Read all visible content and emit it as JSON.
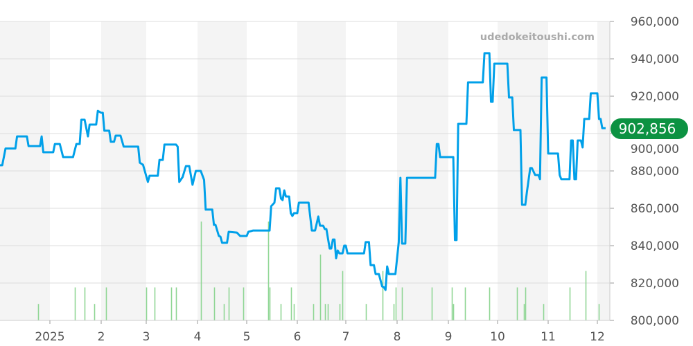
{
  "watermark": "udedokeitoushi.com",
  "current_price_label": "902,856",
  "colors": {
    "line": "#00a0e9",
    "volume": "#8fd694",
    "current_badge": "#0c9242",
    "band": "#f4f4f4",
    "grid": "#dddddd"
  },
  "chart_data": {
    "type": "line",
    "title": "",
    "xlabel": "",
    "ylabel": "",
    "ylim": [
      800000,
      960000
    ],
    "y_axis_position": "right",
    "grid": true,
    "y_ticks": [
      "960,000",
      "940,000",
      "920,000",
      "900,000",
      "880,000",
      "860,000",
      "840,000",
      "820,000",
      "800,000"
    ],
    "x_ticks": [
      {
        "date": "2025-01-01",
        "label": "2025"
      },
      {
        "date": "2025-02-01",
        "label": "2"
      },
      {
        "date": "2025-03-01",
        "label": "3"
      },
      {
        "date": "2025-04-01",
        "label": "4"
      },
      {
        "date": "2025-05-01",
        "label": "5"
      },
      {
        "date": "2025-06-01",
        "label": "6"
      },
      {
        "date": "2025-07-01",
        "label": "7"
      },
      {
        "date": "2025-08-01",
        "label": "8"
      },
      {
        "date": "2025-09-01",
        "label": "9"
      },
      {
        "date": "2025-10-01",
        "label": "10"
      },
      {
        "date": "2025-11-01",
        "label": "11"
      },
      {
        "date": "2025-12-01",
        "label": "12"
      }
    ],
    "series": [
      {
        "points": [
          [
            "2024-12-01",
            883000
          ],
          [
            "2024-12-03",
            883000
          ],
          [
            "2024-12-05",
            892000
          ],
          [
            "2024-12-11",
            892000
          ],
          [
            "2024-12-12",
            898500
          ],
          [
            "2024-12-18",
            898500
          ],
          [
            "2024-12-19",
            893300
          ],
          [
            "2024-12-26",
            893300
          ],
          [
            "2024-12-27",
            898500
          ],
          [
            "2024-12-28",
            890000
          ],
          [
            "2025-01-03",
            890000
          ],
          [
            "2025-01-04",
            894400
          ],
          [
            "2025-01-07",
            894400
          ],
          [
            "2025-01-09",
            887400
          ],
          [
            "2025-01-15",
            887400
          ],
          [
            "2025-01-17",
            894400
          ],
          [
            "2025-01-19",
            894400
          ],
          [
            "2025-01-20",
            907400
          ],
          [
            "2025-01-22",
            907400
          ],
          [
            "2025-01-24",
            898500
          ],
          [
            "2025-01-25",
            904800
          ],
          [
            "2025-01-29",
            904800
          ],
          [
            "2025-01-30",
            912200
          ],
          [
            "2025-02-01",
            911100
          ],
          [
            "2025-02-02",
            911100
          ],
          [
            "2025-02-03",
            901500
          ],
          [
            "2025-02-06",
            901500
          ],
          [
            "2025-02-07",
            895600
          ],
          [
            "2025-02-09",
            895600
          ],
          [
            "2025-02-10",
            898900
          ],
          [
            "2025-02-13",
            898900
          ],
          [
            "2025-02-15",
            893000
          ],
          [
            "2025-02-24",
            893000
          ],
          [
            "2025-02-25",
            884400
          ],
          [
            "2025-02-27",
            883300
          ],
          [
            "2025-03-02",
            874100
          ],
          [
            "2025-03-03",
            877400
          ],
          [
            "2025-03-08",
            877400
          ],
          [
            "2025-03-09",
            885900
          ],
          [
            "2025-03-11",
            885900
          ],
          [
            "2025-03-12",
            894100
          ],
          [
            "2025-03-19",
            894100
          ],
          [
            "2025-03-20",
            893000
          ],
          [
            "2025-03-21",
            874100
          ],
          [
            "2025-03-23",
            876700
          ],
          [
            "2025-03-25",
            882600
          ],
          [
            "2025-03-27",
            882600
          ],
          [
            "2025-03-29",
            872600
          ],
          [
            "2025-03-31",
            880000
          ],
          [
            "2025-04-03",
            880000
          ],
          [
            "2025-04-05",
            875200
          ],
          [
            "2025-04-06",
            859300
          ],
          [
            "2025-04-10",
            859300
          ],
          [
            "2025-04-11",
            851100
          ],
          [
            "2025-04-12",
            851100
          ],
          [
            "2025-04-14",
            845200
          ],
          [
            "2025-04-15",
            844800
          ],
          [
            "2025-04-16",
            841500
          ],
          [
            "2025-04-19",
            841500
          ],
          [
            "2025-04-20",
            847400
          ],
          [
            "2025-04-25",
            847000
          ],
          [
            "2025-04-27",
            845200
          ],
          [
            "2025-05-01",
            845200
          ],
          [
            "2025-05-02",
            847400
          ],
          [
            "2025-05-05",
            848100
          ],
          [
            "2025-05-15",
            848100
          ],
          [
            "2025-05-16",
            861100
          ],
          [
            "2025-05-18",
            863000
          ],
          [
            "2025-05-19",
            870700
          ],
          [
            "2025-05-21",
            870700
          ],
          [
            "2025-05-22",
            865200
          ],
          [
            "2025-05-23",
            864400
          ],
          [
            "2025-05-24",
            869600
          ],
          [
            "2025-05-25",
            866300
          ],
          [
            "2025-05-27",
            866300
          ],
          [
            "2025-05-28",
            857400
          ],
          [
            "2025-05-29",
            855900
          ],
          [
            "2025-05-30",
            857400
          ],
          [
            "2025-06-01",
            857400
          ],
          [
            "2025-06-02",
            863000
          ],
          [
            "2025-06-08",
            863000
          ],
          [
            "2025-06-10",
            848100
          ],
          [
            "2025-06-12",
            848100
          ],
          [
            "2025-06-14",
            855600
          ],
          [
            "2025-06-15",
            850700
          ],
          [
            "2025-06-17",
            850700
          ],
          [
            "2025-06-18",
            848900
          ],
          [
            "2025-06-19",
            848900
          ],
          [
            "2025-06-21",
            838500
          ],
          [
            "2025-06-22",
            838500
          ],
          [
            "2025-06-23",
            843300
          ],
          [
            "2025-06-24",
            843300
          ],
          [
            "2025-06-25",
            833300
          ],
          [
            "2025-06-26",
            837400
          ],
          [
            "2025-06-27",
            835900
          ],
          [
            "2025-06-29",
            835900
          ],
          [
            "2025-06-30",
            840000
          ],
          [
            "2025-07-01",
            840000
          ],
          [
            "2025-07-02",
            835900
          ],
          [
            "2025-07-12",
            835900
          ],
          [
            "2025-07-13",
            841900
          ],
          [
            "2025-07-15",
            841900
          ],
          [
            "2025-07-16",
            829600
          ],
          [
            "2025-07-18",
            829600
          ],
          [
            "2025-07-19",
            824800
          ],
          [
            "2025-07-21",
            824800
          ],
          [
            "2025-07-23",
            818100
          ],
          [
            "2025-07-24",
            817800
          ],
          [
            "2025-07-25",
            816300
          ],
          [
            "2025-07-26",
            828900
          ],
          [
            "2025-07-27",
            824800
          ],
          [
            "2025-07-31",
            824800
          ],
          [
            "2025-08-02",
            841900
          ],
          [
            "2025-08-03",
            876300
          ],
          [
            "2025-08-04",
            841100
          ],
          [
            "2025-08-06",
            841100
          ],
          [
            "2025-08-07",
            876300
          ],
          [
            "2025-08-24",
            876300
          ],
          [
            "2025-08-25",
            894400
          ],
          [
            "2025-08-26",
            894400
          ],
          [
            "2025-08-27",
            887400
          ],
          [
            "2025-09-04",
            887400
          ],
          [
            "2025-09-05",
            843000
          ],
          [
            "2025-09-06",
            843000
          ],
          [
            "2025-09-07",
            905200
          ],
          [
            "2025-09-12",
            905200
          ],
          [
            "2025-09-13",
            927400
          ],
          [
            "2025-09-22",
            927400
          ],
          [
            "2025-09-23",
            943000
          ],
          [
            "2025-09-26",
            943000
          ],
          [
            "2025-09-27",
            917000
          ],
          [
            "2025-09-28",
            917000
          ],
          [
            "2025-09-29",
            937400
          ],
          [
            "2025-10-07",
            937400
          ],
          [
            "2025-10-08",
            919300
          ],
          [
            "2025-10-10",
            919300
          ],
          [
            "2025-10-11",
            901900
          ],
          [
            "2025-10-15",
            901900
          ],
          [
            "2025-10-16",
            861900
          ],
          [
            "2025-10-18",
            861900
          ],
          [
            "2025-10-19",
            868900
          ],
          [
            "2025-10-21",
            881500
          ],
          [
            "2025-10-22",
            881500
          ],
          [
            "2025-10-24",
            877800
          ],
          [
            "2025-10-26",
            877800
          ],
          [
            "2025-10-27",
            875600
          ],
          [
            "2025-10-28",
            930000
          ],
          [
            "2025-10-31",
            930000
          ],
          [
            "2025-11-01",
            889300
          ],
          [
            "2025-11-07",
            889300
          ],
          [
            "2025-11-08",
            877800
          ],
          [
            "2025-11-09",
            875600
          ],
          [
            "2025-11-14",
            875600
          ],
          [
            "2025-11-15",
            896300
          ],
          [
            "2025-11-16",
            896300
          ],
          [
            "2025-11-17",
            875600
          ],
          [
            "2025-11-18",
            875600
          ],
          [
            "2025-11-19",
            896300
          ],
          [
            "2025-11-21",
            896300
          ],
          [
            "2025-11-22",
            892600
          ],
          [
            "2025-11-23",
            907800
          ],
          [
            "2025-11-26",
            907800
          ],
          [
            "2025-11-27",
            921500
          ],
          [
            "2025-12-01",
            921500
          ],
          [
            "2025-12-02",
            907800
          ],
          [
            "2025-12-03",
            907800
          ],
          [
            "2025-12-04",
            902856
          ],
          [
            "2025-12-06",
            902856
          ]
        ]
      }
    ],
    "volume": [
      [
        "2024-12-25",
        1
      ],
      [
        "2025-01-16",
        2
      ],
      [
        "2025-01-22",
        2
      ],
      [
        "2025-01-28",
        1
      ],
      [
        "2025-02-04",
        2
      ],
      [
        "2025-03-01",
        2
      ],
      [
        "2025-03-06",
        2
      ],
      [
        "2025-03-16",
        2
      ],
      [
        "2025-03-19",
        2
      ],
      [
        "2025-04-03",
        6
      ],
      [
        "2025-04-11",
        2
      ],
      [
        "2025-04-17",
        1
      ],
      [
        "2025-04-20",
        2
      ],
      [
        "2025-04-29",
        2
      ],
      [
        "2025-05-14",
        6
      ],
      [
        "2025-05-15",
        2
      ],
      [
        "2025-05-22",
        1
      ],
      [
        "2025-05-28",
        2
      ],
      [
        "2025-05-30",
        1
      ],
      [
        "2025-06-11",
        1
      ],
      [
        "2025-06-15",
        4
      ],
      [
        "2025-06-18",
        1
      ],
      [
        "2025-06-20",
        1
      ],
      [
        "2025-06-27",
        1
      ],
      [
        "2025-06-29",
        3
      ],
      [
        "2025-07-13",
        1
      ],
      [
        "2025-07-23",
        3
      ],
      [
        "2025-07-30",
        1
      ],
      [
        "2025-07-31",
        2
      ],
      [
        "2025-08-04",
        2
      ],
      [
        "2025-08-22",
        2
      ],
      [
        "2025-09-03",
        2
      ],
      [
        "2025-09-04",
        1
      ],
      [
        "2025-09-11",
        2
      ],
      [
        "2025-09-26",
        2
      ],
      [
        "2025-10-13",
        2
      ],
      [
        "2025-10-17",
        1
      ],
      [
        "2025-10-18",
        2
      ],
      [
        "2025-10-29",
        1
      ],
      [
        "2025-11-14",
        2
      ],
      [
        "2025-11-24",
        3
      ],
      [
        "2025-12-02",
        1
      ]
    ]
  }
}
